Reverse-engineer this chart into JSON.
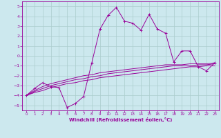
{
  "xlabel": "Windchill (Refroidissement éolien,°C)",
  "bg_color": "#cce8ee",
  "grid_color": "#aacccc",
  "line_color": "#990099",
  "x_main": [
    0,
    1,
    2,
    3,
    4,
    5,
    6,
    7,
    8,
    9,
    10,
    11,
    12,
    13,
    14,
    15,
    16,
    17,
    18,
    19,
    20,
    21,
    22,
    23
  ],
  "y_main": [
    -4.0,
    -3.3,
    -2.7,
    -3.1,
    -3.2,
    -5.2,
    -4.8,
    -4.1,
    -0.7,
    2.7,
    4.1,
    4.9,
    3.5,
    3.3,
    2.6,
    4.2,
    2.7,
    2.3,
    -0.6,
    0.5,
    0.5,
    -1.1,
    -1.5,
    -0.7
  ],
  "y_line1": [
    -4.0,
    -3.5,
    -3.1,
    -2.8,
    -2.6,
    -2.4,
    -2.2,
    -2.0,
    -1.9,
    -1.7,
    -1.6,
    -1.5,
    -1.4,
    -1.3,
    -1.2,
    -1.1,
    -1.0,
    -0.9,
    -0.9,
    -0.9,
    -0.8,
    -0.8,
    -0.8,
    -0.7
  ],
  "y_line2": [
    -4.0,
    -3.6,
    -3.3,
    -3.0,
    -2.8,
    -2.6,
    -2.4,
    -2.3,
    -2.1,
    -2.0,
    -1.8,
    -1.7,
    -1.6,
    -1.5,
    -1.4,
    -1.3,
    -1.2,
    -1.1,
    -1.0,
    -1.0,
    -1.0,
    -0.9,
    -0.9,
    -0.8
  ],
  "y_line3": [
    -4.0,
    -3.7,
    -3.5,
    -3.2,
    -3.0,
    -2.8,
    -2.7,
    -2.5,
    -2.4,
    -2.2,
    -2.1,
    -2.0,
    -1.9,
    -1.8,
    -1.7,
    -1.6,
    -1.5,
    -1.4,
    -1.3,
    -1.2,
    -1.1,
    -1.1,
    -1.0,
    -1.0
  ],
  "ylim": [
    -5.5,
    5.5
  ],
  "xlim": [
    -0.5,
    23.5
  ],
  "yticks": [
    -5,
    -4,
    -3,
    -2,
    -1,
    0,
    1,
    2,
    3,
    4,
    5
  ],
  "xticks": [
    0,
    1,
    2,
    3,
    4,
    5,
    6,
    7,
    8,
    9,
    10,
    11,
    12,
    13,
    14,
    15,
    16,
    17,
    18,
    19,
    20,
    21,
    22,
    23
  ],
  "figsize": [
    3.2,
    2.0
  ],
  "dpi": 100
}
